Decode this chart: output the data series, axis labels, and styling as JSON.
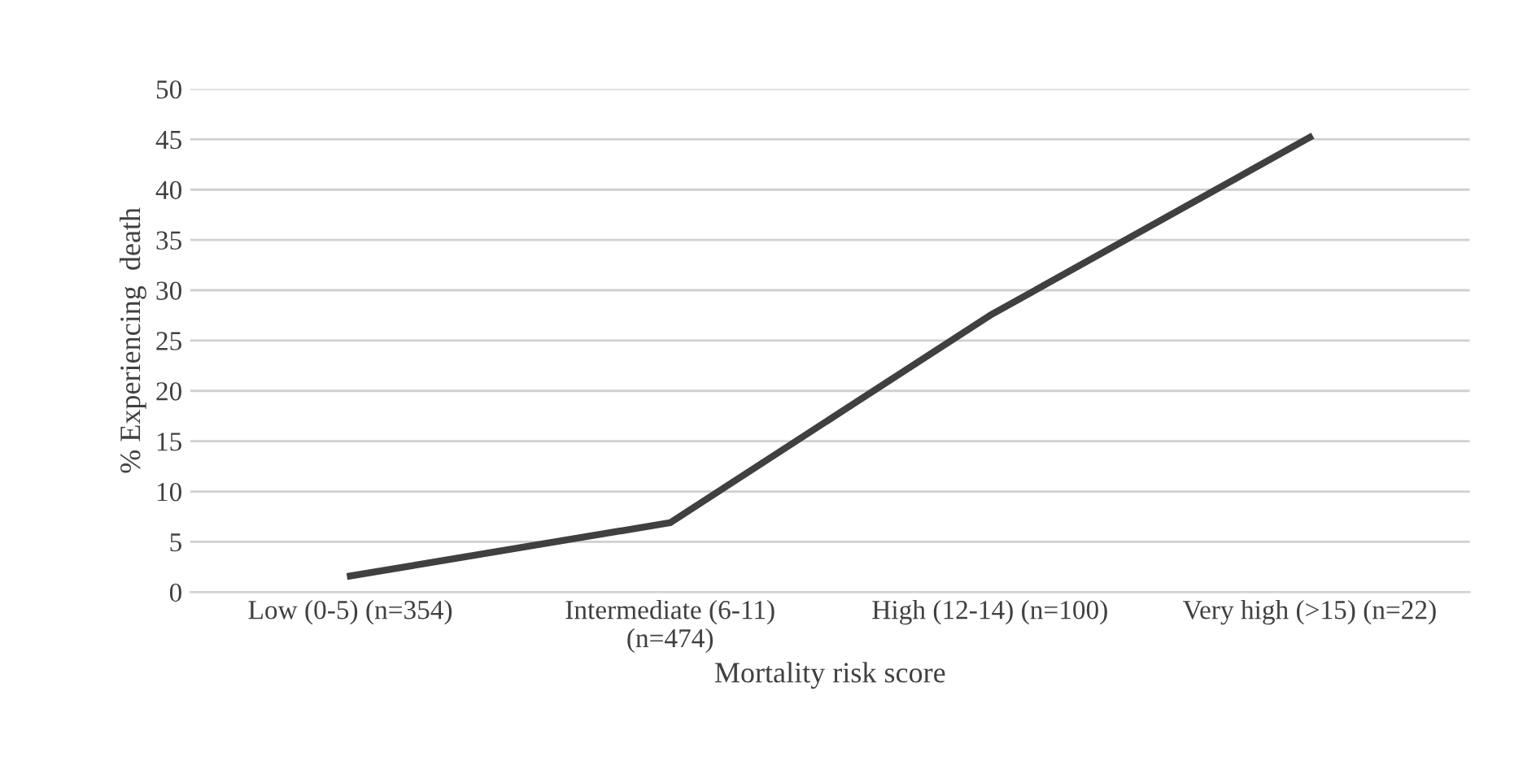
{
  "chart_data": {
    "type": "line",
    "categories": [
      "Low (0-5) (n=354)",
      "Intermediate (6-11)\n(n=474)",
      "High (12-14) (n=100)",
      "Very high (>15) (n=22)"
    ],
    "series": [
      {
        "color": "#404040",
        "values": [
          1.6,
          6.9,
          27.5,
          45.2
        ]
      }
    ],
    "xlabel": "Mortality risk score",
    "ylabel": "% Experiencing  death",
    "ylim": [
      0,
      50
    ],
    "yticks": [
      0,
      5,
      10,
      15,
      20,
      25,
      30,
      35,
      40,
      45,
      50
    ],
    "grid": "y",
    "marker": "none",
    "line_style": "solid"
  }
}
